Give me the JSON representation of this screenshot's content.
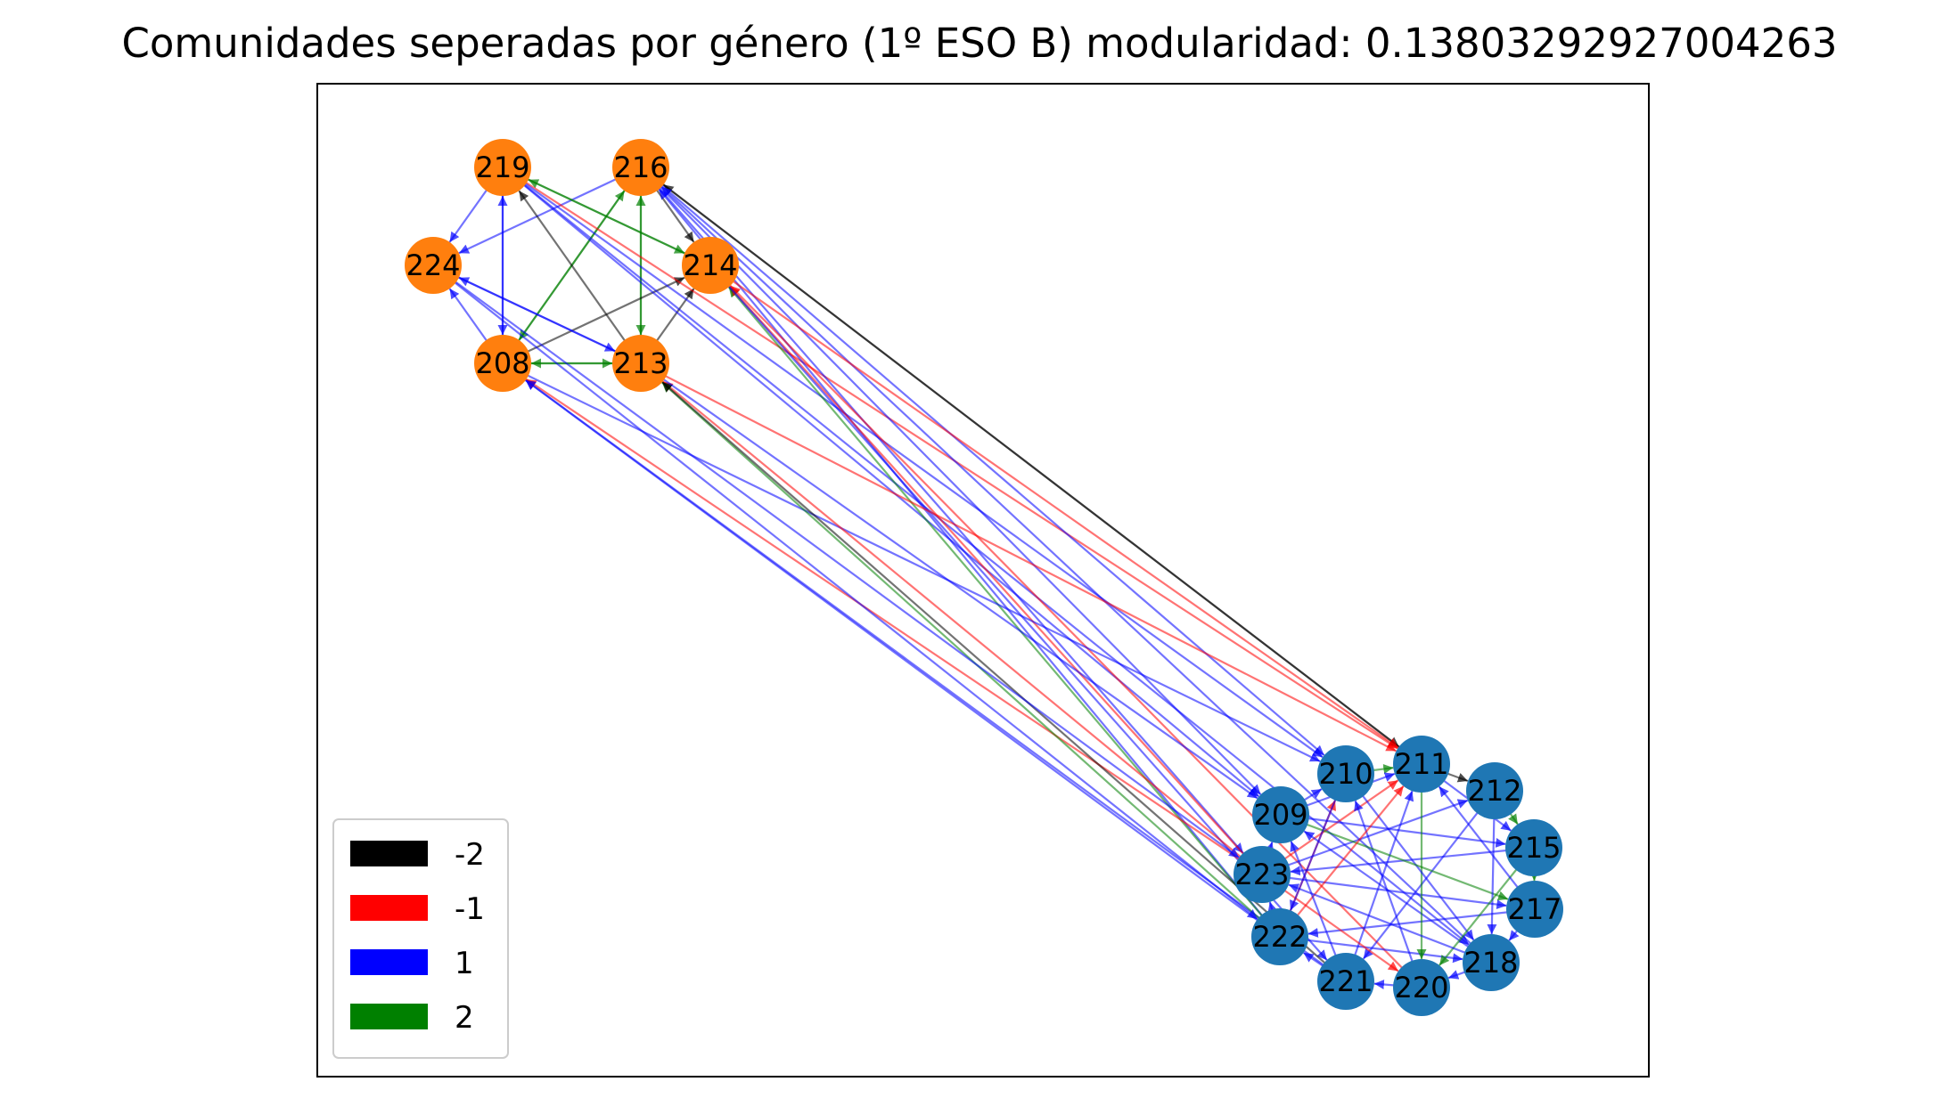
{
  "title": "Comunidades seperadas por género (1º ESO B) modularidad: 0.13803292927004263",
  "colors": {
    "community_female": "#ff7f0e",
    "community_male": "#1f77b4",
    "weight_-2": "#000000",
    "weight_-1": "#ff0000",
    "weight_1": "#0000ff",
    "weight_2": "#008000"
  },
  "legend": [
    {
      "label": "-2",
      "color": "#000000"
    },
    {
      "label": "-1",
      "color": "#ff0000"
    },
    {
      "label": "1",
      "color": "#0000ff"
    },
    {
      "label": "2",
      "color": "#008000"
    }
  ],
  "nodes": [
    {
      "id": "219",
      "community": "female"
    },
    {
      "id": "216",
      "community": "female"
    },
    {
      "id": "224",
      "community": "female"
    },
    {
      "id": "214",
      "community": "female"
    },
    {
      "id": "208",
      "community": "female"
    },
    {
      "id": "213",
      "community": "female"
    },
    {
      "id": "210",
      "community": "male"
    },
    {
      "id": "211",
      "community": "male"
    },
    {
      "id": "212",
      "community": "male"
    },
    {
      "id": "209",
      "community": "male"
    },
    {
      "id": "215",
      "community": "male"
    },
    {
      "id": "223",
      "community": "male"
    },
    {
      "id": "217",
      "community": "male"
    },
    {
      "id": "222",
      "community": "male"
    },
    {
      "id": "218",
      "community": "male"
    },
    {
      "id": "221",
      "community": "male"
    },
    {
      "id": "220",
      "community": "male"
    }
  ],
  "edges": [
    {
      "source": "219",
      "target": "224",
      "weight": 1
    },
    {
      "source": "216",
      "target": "224",
      "weight": 1
    },
    {
      "source": "219",
      "target": "208",
      "weight": 1
    },
    {
      "source": "208",
      "target": "219",
      "weight": 1
    },
    {
      "source": "219",
      "target": "214",
      "weight": 2
    },
    {
      "source": "214",
      "target": "219",
      "weight": 2
    },
    {
      "source": "216",
      "target": "213",
      "weight": 2
    },
    {
      "source": "213",
      "target": "216",
      "weight": 2
    },
    {
      "source": "208",
      "target": "216",
      "weight": 2
    },
    {
      "source": "216",
      "target": "208",
      "weight": 2
    },
    {
      "source": "216",
      "target": "214",
      "weight": -2
    },
    {
      "source": "208",
      "target": "214",
      "weight": -2
    },
    {
      "source": "213",
      "target": "214",
      "weight": -2
    },
    {
      "source": "213",
      "target": "219",
      "weight": -2
    },
    {
      "source": "208",
      "target": "224",
      "weight": 1
    },
    {
      "source": "213",
      "target": "224",
      "weight": 1
    },
    {
      "source": "208",
      "target": "213",
      "weight": 2
    },
    {
      "source": "213",
      "target": "208",
      "weight": 2
    },
    {
      "source": "224",
      "target": "213",
      "weight": 1
    },
    {
      "source": "219",
      "target": "211",
      "weight": -1
    },
    {
      "source": "219",
      "target": "210",
      "weight": 1
    },
    {
      "source": "219",
      "target": "209",
      "weight": 1
    },
    {
      "source": "219",
      "target": "218",
      "weight": 1
    },
    {
      "source": "216",
      "target": "211",
      "weight": -2
    },
    {
      "source": "211",
      "target": "216",
      "weight": -2
    },
    {
      "source": "216",
      "target": "210",
      "weight": 1
    },
    {
      "source": "216",
      "target": "209",
      "weight": 1
    },
    {
      "source": "216",
      "target": "223",
      "weight": 1
    },
    {
      "source": "222",
      "target": "216",
      "weight": 1
    },
    {
      "source": "218",
      "target": "216",
      "weight": 1
    },
    {
      "source": "214",
      "target": "211",
      "weight": -1
    },
    {
      "source": "223",
      "target": "214",
      "weight": -1
    },
    {
      "source": "222",
      "target": "214",
      "weight": 2
    },
    {
      "source": "220",
      "target": "214",
      "weight": -1
    },
    {
      "source": "214",
      "target": "221",
      "weight": 1
    },
    {
      "source": "208",
      "target": "210",
      "weight": 1
    },
    {
      "source": "222",
      "target": "208",
      "weight": 1
    },
    {
      "source": "223",
      "target": "208",
      "weight": -1
    },
    {
      "source": "221",
      "target": "208",
      "weight": 1
    },
    {
      "source": "213",
      "target": "211",
      "weight": -1
    },
    {
      "source": "223",
      "target": "213",
      "weight": -1
    },
    {
      "source": "222",
      "target": "213",
      "weight": 2
    },
    {
      "source": "221",
      "target": "213",
      "weight": -2
    },
    {
      "source": "213",
      "target": "209",
      "weight": 1
    },
    {
      "source": "224",
      "target": "223",
      "weight": 1
    },
    {
      "source": "224",
      "target": "222",
      "weight": 1
    },
    {
      "source": "210",
      "target": "211",
      "weight": 2
    },
    {
      "source": "211",
      "target": "212",
      "weight": -2
    },
    {
      "source": "209",
      "target": "211",
      "weight": 1
    },
    {
      "source": "223",
      "target": "211",
      "weight": -1
    },
    {
      "source": "222",
      "target": "210",
      "weight": -1
    },
    {
      "source": "223",
      "target": "212",
      "weight": 1
    },
    {
      "source": "209",
      "target": "215",
      "weight": 1
    },
    {
      "source": "223",
      "target": "217",
      "weight": 1
    },
    {
      "source": "222",
      "target": "218",
      "weight": 1
    },
    {
      "source": "221",
      "target": "211",
      "weight": 1
    },
    {
      "source": "220",
      "target": "210",
      "weight": 1
    },
    {
      "source": "218",
      "target": "209",
      "weight": 1
    },
    {
      "source": "217",
      "target": "222",
      "weight": 1
    },
    {
      "source": "215",
      "target": "223",
      "weight": 1
    },
    {
      "source": "212",
      "target": "221",
      "weight": 1
    },
    {
      "source": "211",
      "target": "220",
      "weight": 2
    },
    {
      "source": "210",
      "target": "218",
      "weight": 1
    },
    {
      "source": "209",
      "target": "217",
      "weight": 2
    },
    {
      "source": "223",
      "target": "220",
      "weight": -1
    },
    {
      "source": "222",
      "target": "211",
      "weight": -1
    },
    {
      "source": "212",
      "target": "215",
      "weight": 2
    },
    {
      "source": "215",
      "target": "217",
      "weight": 2
    },
    {
      "source": "217",
      "target": "218",
      "weight": 1
    },
    {
      "source": "218",
      "target": "220",
      "weight": 1
    },
    {
      "source": "220",
      "target": "221",
      "weight": 1
    },
    {
      "source": "221",
      "target": "222",
      "weight": 1
    },
    {
      "source": "222",
      "target": "223",
      "weight": 1
    },
    {
      "source": "223",
      "target": "209",
      "weight": 1
    },
    {
      "source": "209",
      "target": "210",
      "weight": 1
    },
    {
      "source": "211",
      "target": "215",
      "weight": 1
    },
    {
      "source": "212",
      "target": "218",
      "weight": 1
    },
    {
      "source": "215",
      "target": "220",
      "weight": 2
    },
    {
      "source": "210",
      "target": "222",
      "weight": 1
    },
    {
      "source": "221",
      "target": "209",
      "weight": 1
    },
    {
      "source": "217",
      "target": "211",
      "weight": 1
    },
    {
      "source": "218",
      "target": "223",
      "weight": 1
    }
  ]
}
